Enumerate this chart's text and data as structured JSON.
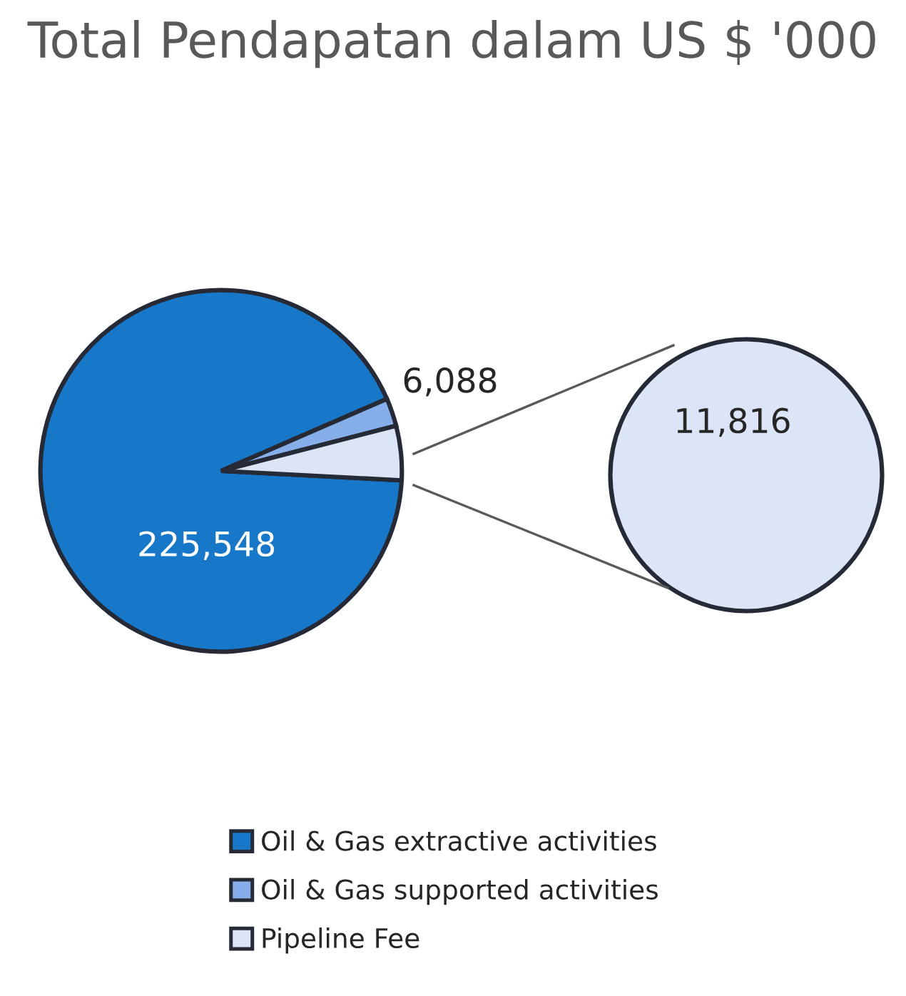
{
  "chart_data": [
    {
      "type": "pie",
      "title": "Total Pendapatan dalam US $ '000",
      "categories": [
        "Oil & Gas extractive activities",
        "Oil & Gas supported activities",
        "Pipeline Fee"
      ],
      "values": [
        225548,
        6088,
        11816
      ],
      "colors": [
        "#1777c9",
        "#86aee8",
        "#dbe5f7"
      ],
      "value_labels": [
        "225,548",
        "6,088",
        null
      ],
      "legend": "bottom"
    },
    {
      "type": "pie",
      "values": [
        11816
      ],
      "colors": [
        "#dbe5f7"
      ],
      "value_labels": [
        "11,816"
      ]
    }
  ]
}
